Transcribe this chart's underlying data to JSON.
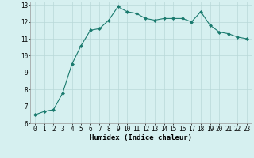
{
  "xlabel": "Humidex (Indice chaleur)",
  "ylabel": "",
  "x": [
    0,
    1,
    2,
    3,
    4,
    5,
    6,
    7,
    8,
    9,
    10,
    11,
    12,
    13,
    14,
    15,
    16,
    17,
    18,
    19,
    20,
    21,
    22,
    23
  ],
  "y": [
    6.5,
    6.7,
    6.8,
    7.8,
    9.5,
    10.6,
    11.5,
    11.6,
    12.1,
    12.9,
    12.6,
    12.5,
    12.2,
    12.1,
    12.2,
    12.2,
    12.2,
    12.0,
    12.6,
    11.8,
    11.4,
    11.3,
    11.1,
    11.0
  ],
  "line_color": "#1a7a6e",
  "marker": "D",
  "marker_size": 2.0,
  "bg_color": "#d6f0f0",
  "grid_color": "#b8d8d8",
  "ylim": [
    6,
    13.2
  ],
  "xlim": [
    -0.5,
    23.5
  ],
  "yticks": [
    6,
    7,
    8,
    9,
    10,
    11,
    12,
    13
  ],
  "xticks": [
    0,
    1,
    2,
    3,
    4,
    5,
    6,
    7,
    8,
    9,
    10,
    11,
    12,
    13,
    14,
    15,
    16,
    17,
    18,
    19,
    20,
    21,
    22,
    23
  ],
  "xlabel_fontsize": 6.5,
  "tick_fontsize": 5.5
}
